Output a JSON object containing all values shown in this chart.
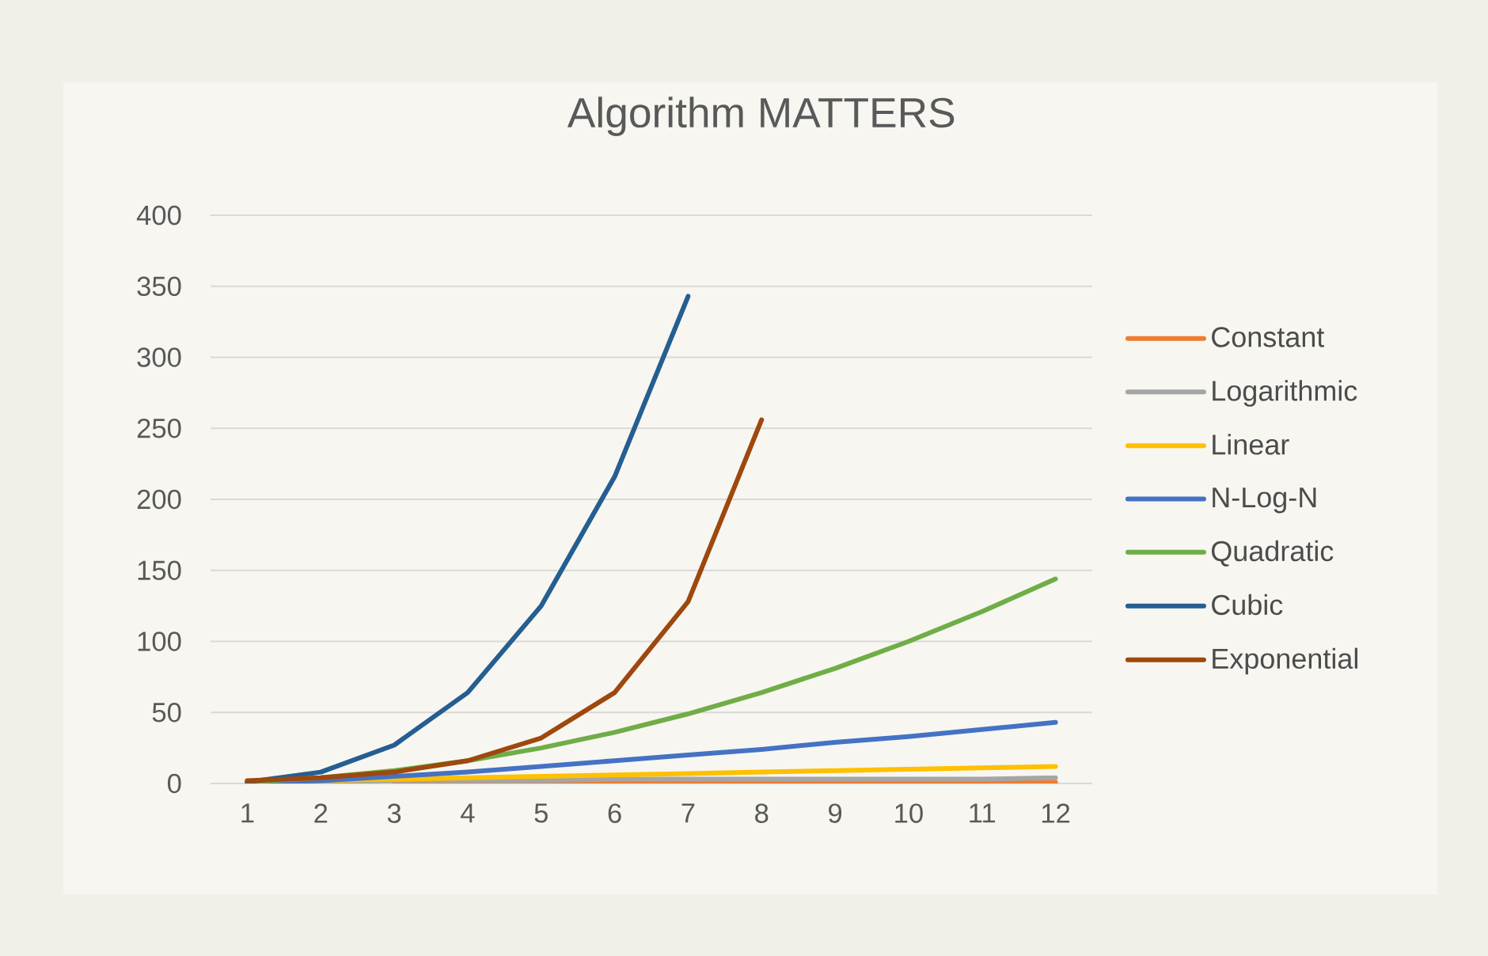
{
  "chart_data": {
    "type": "line",
    "title": "Algorithm MATTERS",
    "categories": [
      "1",
      "2",
      "3",
      "4",
      "5",
      "6",
      "7",
      "8",
      "9",
      "10",
      "11",
      "12"
    ],
    "series": [
      {
        "name": "Constant",
        "color": "#ed7d31",
        "values": [
          null,
          null,
          1,
          1,
          1,
          1,
          1,
          1,
          1,
          1,
          1,
          1
        ]
      },
      {
        "name": "Logarithmic",
        "color": "#a5a5a5",
        "values": [
          0,
          1,
          2,
          2,
          2,
          3,
          3,
          3,
          3,
          3,
          3,
          4
        ]
      },
      {
        "name": "Linear",
        "color": "#ffc000",
        "values": [
          1,
          2,
          3,
          4,
          5,
          6,
          7,
          8,
          9,
          10,
          11,
          12
        ]
      },
      {
        "name": "N-Log-N",
        "color": "#4472c4",
        "values": [
          0,
          2,
          5,
          8,
          12,
          16,
          20,
          24,
          29,
          33,
          38,
          43
        ]
      },
      {
        "name": "Quadratic",
        "color": "#70ad47",
        "values": [
          1,
          4,
          9,
          16,
          25,
          36,
          49,
          64,
          81,
          100,
          121,
          144
        ]
      },
      {
        "name": "Cubic",
        "color": "#255e91",
        "values": [
          1,
          8,
          27,
          64,
          125,
          216,
          343,
          null,
          null,
          null,
          null,
          null
        ]
      },
      {
        "name": "Exponential",
        "color": "#9e480e",
        "values": [
          2,
          4,
          8,
          16,
          32,
          64,
          128,
          256,
          null,
          null,
          null,
          null
        ]
      }
    ],
    "ylim": [
      0,
      400
    ],
    "yticks": [
      0,
      50,
      100,
      150,
      200,
      250,
      300,
      350,
      400
    ],
    "grid": "y",
    "legend": "right",
    "marker": "none",
    "line_style": "solid"
  }
}
